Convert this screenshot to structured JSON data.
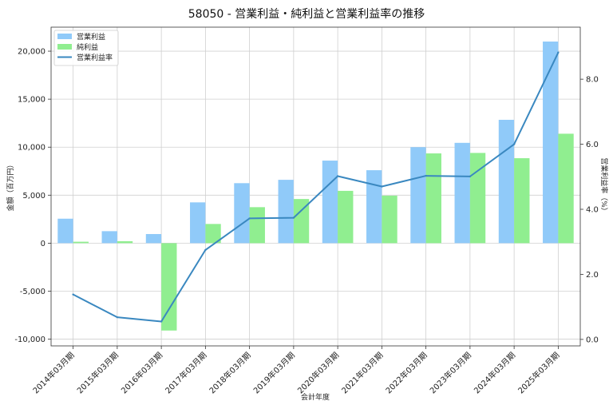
{
  "chart_data": {
    "type": "bar",
    "title": "58050 - 営業利益・純利益と営業利益率の推移",
    "xlabel": "会計年度",
    "ylabel": "金額（百万円）",
    "y2label": "営業利益率（%）",
    "categories": [
      "2014年03月期",
      "2015年03月期",
      "2016年03月期",
      "2017年03月期",
      "2018年03月期",
      "2019年03月期",
      "2020年03月期",
      "2021年03月期",
      "2022年03月期",
      "2023年03月期",
      "2024年03月期",
      "2025年03月期"
    ],
    "series": [
      {
        "name": "営業利益",
        "type": "bar",
        "axis": "left",
        "color": "#90CAF9",
        "values": [
          2550,
          1250,
          950,
          4250,
          6250,
          6600,
          8600,
          7600,
          10000,
          10450,
          12850,
          21000
        ]
      },
      {
        "name": "純利益",
        "type": "bar",
        "axis": "left",
        "color": "#90EE90",
        "values": [
          150,
          200,
          -9100,
          2000,
          3750,
          4600,
          5450,
          4950,
          9350,
          9400,
          8850,
          11400
        ]
      },
      {
        "name": "営業利益率",
        "type": "line",
        "axis": "right",
        "color": "#3A88C0",
        "values": [
          1.38,
          0.68,
          0.55,
          2.75,
          3.72,
          3.74,
          5.02,
          4.7,
          5.03,
          5.01,
          6.0,
          8.82
        ]
      }
    ],
    "ylim": [
      -10700,
      22500
    ],
    "yticks": [
      -10000,
      -5000,
      0,
      5000,
      10000,
      15000,
      20000
    ],
    "yticklabels": [
      "-10,000",
      "-5,000",
      "0",
      "5,000",
      "10,000",
      "15,000",
      "20,000"
    ],
    "y2lim": [
      -0.2,
      9.6
    ],
    "y2ticks": [
      0,
      2,
      4,
      6,
      8
    ],
    "y2ticklabels": [
      "0.0",
      "2.0",
      "4.0",
      "6.0",
      "8.0"
    ],
    "grid": true,
    "legend": "top-left"
  }
}
